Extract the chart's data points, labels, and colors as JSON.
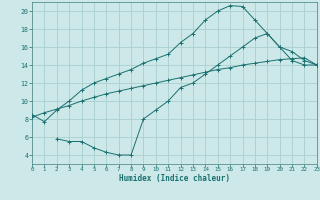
{
  "xlabel": "Humidex (Indice chaleur)",
  "xlim": [
    0,
    23
  ],
  "ylim": [
    3,
    21
  ],
  "yticks": [
    4,
    6,
    8,
    10,
    12,
    14,
    16,
    18,
    20
  ],
  "xticks": [
    0,
    1,
    2,
    3,
    4,
    5,
    6,
    7,
    8,
    9,
    10,
    11,
    12,
    13,
    14,
    15,
    16,
    17,
    18,
    19,
    20,
    21,
    22,
    23
  ],
  "bg_color": "#cce8e8",
  "grid_color": "#aacfcf",
  "line_color": "#1a7070",
  "line1_x": [
    0,
    1,
    2,
    3,
    4,
    5,
    6,
    7,
    8,
    9,
    10,
    11,
    12,
    13,
    14,
    15,
    16,
    17,
    18,
    19,
    20,
    21,
    22,
    23
  ],
  "line1_y": [
    8.5,
    7.7,
    9.0,
    10.0,
    11.2,
    12.0,
    12.5,
    13.0,
    13.5,
    14.2,
    14.7,
    15.2,
    16.5,
    17.5,
    19.0,
    20.0,
    20.6,
    20.5,
    19.0,
    17.5,
    16.0,
    15.5,
    14.5,
    14.0
  ],
  "line2_x": [
    0,
    1,
    2,
    3,
    4,
    5,
    6,
    7,
    8,
    9,
    10,
    11,
    12,
    13,
    14,
    15,
    16,
    17,
    18,
    19,
    20,
    21,
    22,
    23
  ],
  "line2_y": [
    8.2,
    8.7,
    9.1,
    9.5,
    10.0,
    10.4,
    10.8,
    11.1,
    11.4,
    11.7,
    12.0,
    12.3,
    12.6,
    12.9,
    13.2,
    13.5,
    13.7,
    14.0,
    14.2,
    14.4,
    14.6,
    14.7,
    14.8,
    14.0
  ],
  "line3_x": [
    2,
    3,
    4,
    5,
    6,
    7,
    8,
    9,
    10,
    11,
    12,
    13,
    14,
    15,
    16,
    17,
    18,
    19,
    20,
    21,
    22,
    23
  ],
  "line3_y": [
    5.8,
    5.5,
    5.5,
    4.8,
    4.3,
    4.0,
    4.0,
    8.0,
    9.0,
    10.0,
    11.5,
    12.0,
    13.0,
    14.0,
    15.0,
    16.0,
    17.0,
    17.5,
    16.0,
    14.5,
    14.0,
    14.0
  ]
}
